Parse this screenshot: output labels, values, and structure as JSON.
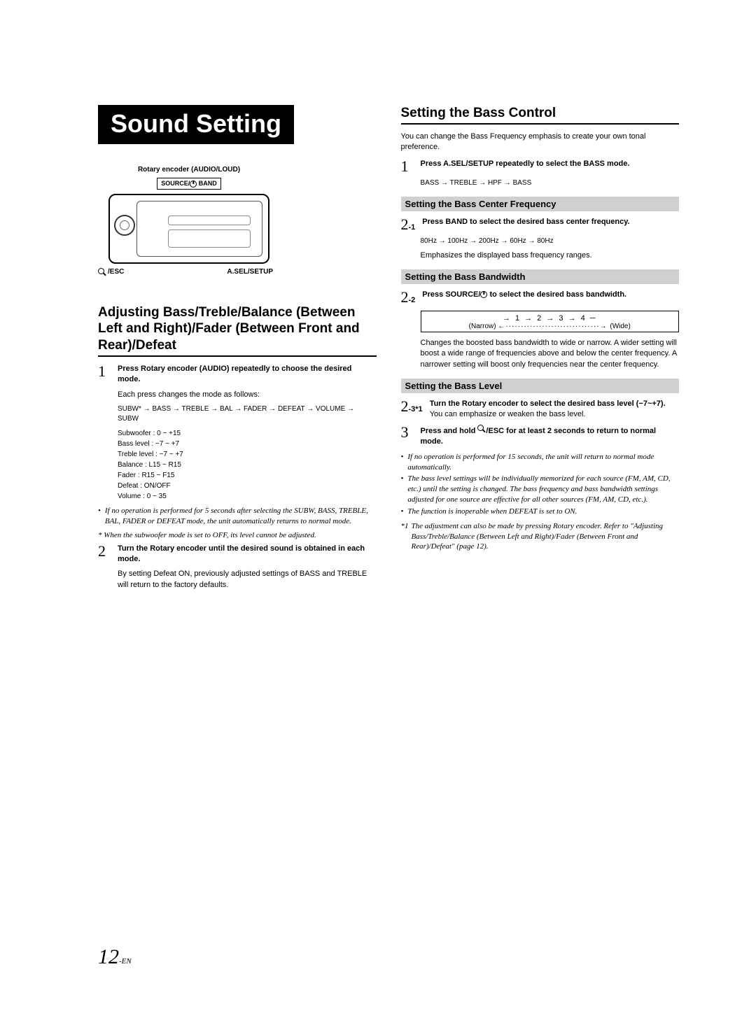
{
  "title": "Sound Setting",
  "diagram": {
    "top_label": "Rotary encoder (AUDIO/LOUD)",
    "mid_label_left": "SOURCE/",
    "mid_label_right": "BAND",
    "bottom_left": "/ESC",
    "bottom_right": "A.SEL/SETUP"
  },
  "left": {
    "h2": "Adjusting Bass/Treble/Balance (Between Left and Right)/Fader (Between Front and Rear)/Defeat",
    "step1": {
      "num": "1",
      "bold_a": "Press ",
      "bold_b": "Rotary encoder (AUDIO)",
      "bold_c": " repeatedly to choose the desired mode.",
      "body1": "Each press changes the mode as follows:",
      "seq": "SUBW* → BASS → TREBLE → BAL → FADER → DEFEAT → VOLUME → SUBW",
      "ranges": {
        "r1": "Subwoofer : 0 ~ +15",
        "r2": "Bass level : −7 ~ +7",
        "r3": "Treble level : −7 ~ +7",
        "r4": "Balance : L15 ~ R15",
        "r5": "Fader : R15 ~ F15",
        "r6": "Defeat : ON/OFF",
        "r7": "Volume : 0 ~ 35"
      }
    },
    "note1": "If no operation is performed for 5 seconds after selecting the SUBW, BASS, TREBLE, BAL, FADER or DEFEAT mode, the unit automatically returns to normal mode.",
    "ast_note": "* When the subwoofer mode is set to OFF, its level cannot be adjusted.",
    "step2": {
      "num": "2",
      "bold_a": "Turn the ",
      "bold_b": "Rotary encoder",
      "bold_c": " until the desired sound is obtained in each mode.",
      "body1": "By setting Defeat ON, previously adjusted settings of BASS and TREBLE will return to the factory defaults."
    }
  },
  "right": {
    "h2": "Setting the Bass Control",
    "intro": "You can change the Bass Frequency emphasis to create your own tonal preference.",
    "step1": {
      "num": "1",
      "bold_a": "Press ",
      "bold_b": "A.SEL/SETUP",
      "bold_c": " repeatedly to select the BASS mode.",
      "seq": "BASS → TREBLE → HPF → BASS"
    },
    "h3a": "Setting the Bass Center Frequency",
    "step21": {
      "num": "2",
      "sub": "-1",
      "bold_a": "Press ",
      "bold_b": "BAND",
      "bold_c": " to select the desired bass center frequency.",
      "seq": "80Hz → 100Hz → 200Hz → 60Hz → 80Hz",
      "body1": "Emphasizes the displayed bass frequency ranges."
    },
    "h3b": "Setting the Bass Bandwidth",
    "step22": {
      "num": "2",
      "sub": "-2",
      "bold_a": "Press ",
      "bold_b": "SOURCE/",
      "bold_c": " to select the desired bass bandwidth.",
      "bw_row1": "→   1   →   2   →   3   →   4   ─",
      "bw_narrow": "(Narrow)",
      "bw_wide": "(Wide)",
      "body1": "Changes the boosted bass bandwidth to wide or narrow. A wider setting will boost a wide range of frequencies above and below the center frequency. A narrower setting will boost only frequencies near the center frequency."
    },
    "h3c": "Setting the Bass Level",
    "step23": {
      "num": "2",
      "sub": "-3*1",
      "bold_a": "Turn the ",
      "bold_b": "Rotary encoder",
      "bold_c": " to select the desired bass level (−7~+7).",
      "body1": "You can emphasize or weaken the bass level."
    },
    "step3": {
      "num": "3",
      "bold_a": "Press and hold ",
      "bold_b": "/ESC",
      "bold_c": " for at least 2 seconds to return to normal mode."
    },
    "notes": {
      "n1": "If no operation is performed for 15 seconds, the unit will return to normal mode automatically.",
      "n2": "The bass level settings will be individually memorized for each source (FM, AM, CD, etc.) until the setting is changed. The bass frequency and bass bandwidth settings adjusted for one source are effective for all other sources (FM, AM, CD, etc.).",
      "n3": "The function is inoperable when DEFEAT is set to ON."
    },
    "footnote": {
      "marker": "*1",
      "text": "The adjustment can also be made by pressing Rotary encoder. Refer to \"Adjusting Bass/Treble/Balance (Between Left and Right)/Fader (Between Front and Rear)/Defeat\" (page 12)."
    }
  },
  "page": {
    "num": "12",
    "suffix": "-EN"
  }
}
